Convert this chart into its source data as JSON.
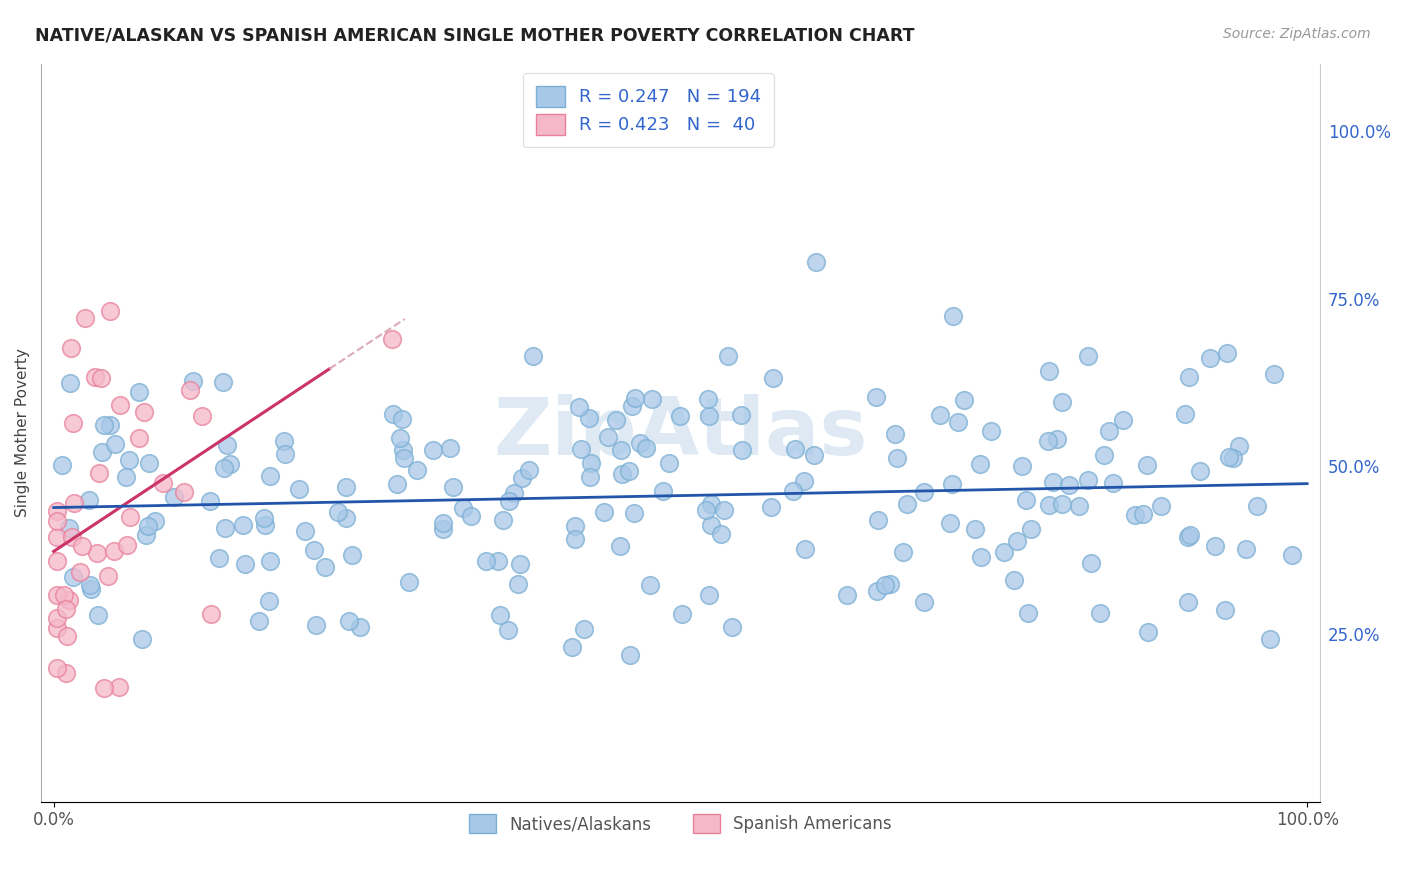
{
  "title": "NATIVE/ALASKAN VS SPANISH AMERICAN SINGLE MOTHER POVERTY CORRELATION CHART",
  "source": "Source: ZipAtlas.com",
  "ylabel": "Single Mother Poverty",
  "watermark": "ZipAtlas",
  "blue_color": "#a8c8e8",
  "blue_edge_color": "#7bafd4",
  "pink_color": "#f5b8ca",
  "pink_edge_color": "#e8809a",
  "blue_line_color": "#2255aa",
  "pink_line_color": "#cc3366",
  "pink_line_dashed_color": "#ddaabb",
  "R_blue": 0.247,
  "N_blue": 194,
  "R_pink": 0.423,
  "N_pink": 40,
  "background_color": "#ffffff",
  "grid_color": "#cccccc",
  "natives_label": "Natives/Alaskans",
  "spanish_label": "Spanish Americans",
  "right_tick_color": "#3366cc",
  "title_color": "#222222",
  "source_color": "#999999"
}
